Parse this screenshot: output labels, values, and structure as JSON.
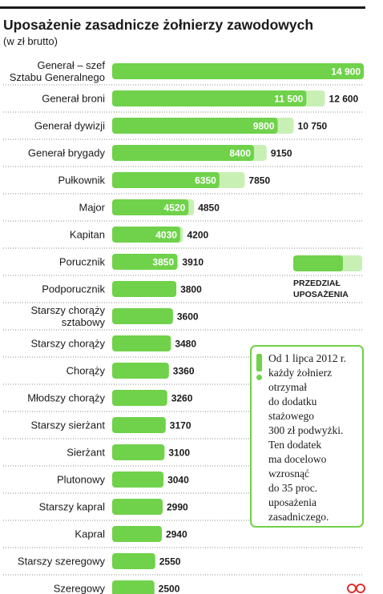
{
  "header": {
    "title": "Uposażenie zasadnicze żołnierzy zawodowych",
    "subtitle": "(w zł brutto)"
  },
  "chart_data": {
    "type": "bar",
    "title": "Uposażenie zasadnicze żołnierzy zawodowych",
    "subtitle": "(w zł brutto)",
    "categories": [
      "Generał – szef\nSztabu Generalnego",
      "Generał broni",
      "Generał dywizji",
      "Generał brygady",
      "Pułkownik",
      "Major",
      "Kapitan",
      "Porucznik",
      "Podporucznik",
      "Starszy chorąży\nsztabowy",
      "Starszy chorąży",
      "Chorąży",
      "Młodszy chorąży",
      "Starszy sierżant",
      "Sierżant",
      "Plutonowy",
      "Starszy kapral",
      "Kapral",
      "Starszy szeregowy",
      "Szeregowy"
    ],
    "series": [
      {
        "values": [
          14900,
          11500,
          9800,
          8400,
          6350,
          4520,
          4030,
          3850,
          3800,
          3600,
          3480,
          3360,
          3260,
          3170,
          3100,
          3040,
          2990,
          2940,
          2550,
          2500
        ]
      },
      {
        "values": [
          14900,
          12600,
          10750,
          9150,
          7850,
          4850,
          4200,
          3910,
          3800,
          3600,
          3480,
          3360,
          3260,
          3170,
          3100,
          3040,
          2990,
          2940,
          2550,
          2500
        ]
      }
    ],
    "min_labels": [
      "14 900",
      "11 500",
      "9800",
      "8400",
      "6350",
      "4520",
      "4030",
      "3850",
      "",
      "",
      "",
      "",
      "",
      "",
      "",
      "",
      "",
      "",
      "",
      ""
    ],
    "max_labels": [
      "",
      "12 600",
      "10 750",
      "9150",
      "7850",
      "4850",
      "4200",
      "3910",
      "3800",
      "3600",
      "3480",
      "3360",
      "3260",
      "3170",
      "3100",
      "3040",
      "2990",
      "2940",
      "2550",
      "2500"
    ],
    "xlim": [
      0,
      14900
    ],
    "legend": {
      "label": "PRZEDZIAŁ\nUPOSAŻENIA",
      "position": "right"
    },
    "colors": {
      "min": "#6fd24a",
      "range": "#c8f0b4",
      "rule": "#1a1a1a"
    }
  },
  "note": {
    "text": "Od 1 lipca 2012 r.\nkażdy żołnierz\notrzymał\ndo dodatku\nstażowego\n300 zł podwyżki.\nTen dodatek\nma docelowo\nwzrosnąć\ndo 35 proc.\nuposażenia\nzasadniczego."
  },
  "logo": {
    "icon": "publisher-logo-icon",
    "color": "#e03030"
  }
}
